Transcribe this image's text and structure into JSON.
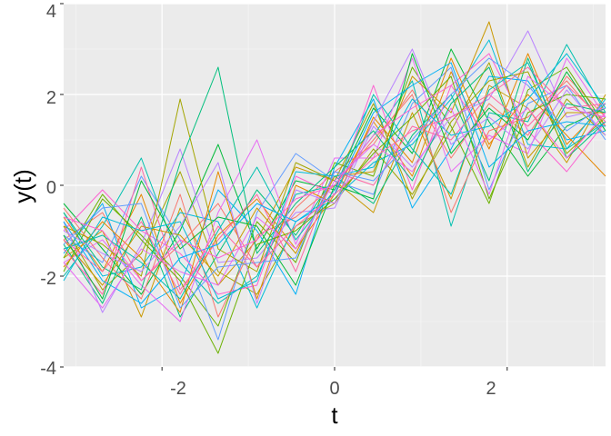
{
  "chart_data": {
    "type": "line",
    "title": "",
    "xlabel": "t",
    "ylabel": "y(t)",
    "xlim": [
      -3.14,
      3.14
    ],
    "ylim": [
      -4,
      4
    ],
    "x_ticks": [
      -2,
      0,
      2
    ],
    "x_tick_labels": [
      "-2",
      "0",
      "2"
    ],
    "y_ticks": [
      -4,
      -2,
      0,
      2,
      4
    ],
    "y_tick_labels": [
      "-4",
      "-2",
      "0",
      "2",
      "4"
    ],
    "grid": true,
    "legend": "none",
    "panel_background": "#EBEBEB",
    "series_colors": [
      "#F8766D",
      "#E58700",
      "#C99800",
      "#A3A500",
      "#6BB100",
      "#00BA38",
      "#00BF7D",
      "#00C0AF",
      "#00BCD8",
      "#00B0F6",
      "#619CFF",
      "#B983FF",
      "#E76BF3",
      "#FD61D1",
      "#FF67A4"
    ],
    "underlying_trend": {
      "x": [
        -3.14,
        -2.36,
        -1.57,
        -0.79,
        0,
        0.79,
        1.57,
        2.36,
        3.14
      ],
      "y": [
        -1.0,
        -1.3,
        -1.4,
        -0.9,
        0.0,
        0.9,
        1.4,
        1.3,
        1.0
      ]
    },
    "series": [
      {
        "x": [
          -3.14,
          -2.69,
          -2.24,
          -1.79,
          -1.35,
          -0.9,
          -0.45,
          0,
          0.45,
          0.9,
          1.35,
          1.79,
          2.24,
          2.69,
          3.14
        ],
        "y": [
          -1.2,
          -0.6,
          -2.1,
          -1.3,
          -0.4,
          -1.8,
          -0.5,
          0.3,
          0.9,
          2.1,
          0.6,
          1.8,
          1.1,
          2.4,
          1.5
        ]
      },
      {
        "x": [
          -3.14,
          -2.69,
          -2.24,
          -1.79,
          -1.35,
          -0.9,
          -0.45,
          0,
          0.45,
          0.9,
          1.35,
          1.79,
          2.24,
          2.69,
          3.14
        ],
        "y": [
          -0.7,
          -1.9,
          -0.2,
          -2.6,
          -1.1,
          -0.3,
          -1.4,
          -0.2,
          1.4,
          0.2,
          2.5,
          0.8,
          2.9,
          0.9,
          1.8
        ]
      },
      {
        "x": [
          -3.14,
          -2.69,
          -2.24,
          -1.79,
          -1.35,
          -0.9,
          -0.45,
          0,
          0.45,
          0.9,
          1.35,
          1.79,
          2.24,
          2.69,
          3.14
        ],
        "y": [
          -1.6,
          -1.0,
          -2.9,
          -0.5,
          -2.2,
          -1.2,
          0.4,
          0.1,
          -0.6,
          1.6,
          -0.3,
          2.2,
          1.7,
          0.5,
          2.0
        ]
      },
      {
        "x": [
          -3.14,
          -2.69,
          -2.24,
          -1.79,
          -1.35,
          -0.9,
          -0.45,
          0,
          0.45,
          0.9,
          1.35,
          1.79,
          2.24,
          2.69,
          3.14
        ],
        "y": [
          -0.9,
          -2.3,
          -1.5,
          0.3,
          -1.9,
          -2.4,
          -0.9,
          -0.4,
          0.8,
          -0.2,
          1.2,
          2.7,
          0.4,
          1.9,
          1.1
        ]
      },
      {
        "x": [
          -3.14,
          -2.69,
          -2.24,
          -1.79,
          -1.35,
          -0.9,
          -0.45,
          0,
          0.45,
          0.9,
          1.35,
          1.79,
          2.24,
          2.69,
          3.14
        ],
        "y": [
          -1.9,
          -0.3,
          -1.1,
          -2.0,
          -3.1,
          -0.8,
          -1.7,
          0.5,
          0.2,
          2.6,
          1.3,
          -0.4,
          2.1,
          2.6,
          1.3
        ]
      },
      {
        "x": [
          -3.14,
          -2.69,
          -2.24,
          -1.79,
          -1.35,
          -0.9,
          -0.45,
          0,
          0.45,
          0.9,
          1.35,
          1.79,
          2.24,
          2.69,
          3.14
        ],
        "y": [
          -0.4,
          -1.4,
          -2.4,
          -1.0,
          0.9,
          -1.4,
          0.1,
          -0.1,
          1.7,
          0.7,
          3.0,
          1.4,
          0.2,
          1.3,
          1.7
        ]
      },
      {
        "x": [
          -3.14,
          -2.69,
          -2.24,
          -1.79,
          -1.35,
          -0.9,
          -0.45,
          0,
          0.45,
          0.9,
          1.35,
          1.79,
          2.24,
          2.69,
          3.14
        ],
        "y": [
          -1.3,
          -2.6,
          -0.7,
          -2.9,
          -1.5,
          -0.1,
          -1.1,
          0.2,
          -0.4,
          1.1,
          2.0,
          0.1,
          2.8,
          0.6,
          1.4
        ]
      },
      {
        "x": [
          -3.14,
          -2.69,
          -2.24,
          -1.79,
          -1.35,
          -0.9,
          -0.45,
          0,
          0.45,
          0.9,
          1.35,
          1.79,
          2.24,
          2.69,
          3.14
        ],
        "y": [
          -2.0,
          -0.9,
          0.6,
          -1.7,
          -2.6,
          -2.0,
          -0.2,
          0.0,
          1.1,
          2.3,
          -0.9,
          1.6,
          1.4,
          3.1,
          1.6
        ]
      },
      {
        "x": [
          -3.14,
          -2.69,
          -2.24,
          -1.79,
          -1.35,
          -0.9,
          -0.45,
          0,
          0.45,
          0.9,
          1.35,
          1.79,
          2.24,
          2.69,
          3.14
        ],
        "y": [
          -0.6,
          -2.0,
          -1.8,
          -0.6,
          -0.8,
          -2.7,
          -0.8,
          -0.3,
          0.5,
          0.9,
          1.9,
          3.2,
          0.9,
          0.8,
          1.9
        ]
      },
      {
        "x": [
          -3.14,
          -2.69,
          -2.24,
          -1.79,
          -1.35,
          -0.9,
          -0.45,
          0,
          0.45,
          0.9,
          1.35,
          1.79,
          2.24,
          2.69,
          3.14
        ],
        "y": [
          -1.5,
          -0.4,
          -2.7,
          -2.2,
          -0.1,
          -1.0,
          -2.4,
          0.4,
          1.9,
          -0.5,
          0.8,
          2.4,
          2.3,
          1.0,
          1.2
        ]
      },
      {
        "x": [
          -3.14,
          -2.69,
          -2.24,
          -1.79,
          -1.35,
          -0.9,
          -0.45,
          0,
          0.45,
          0.9,
          1.35,
          1.79,
          2.24,
          2.69,
          3.14
        ],
        "y": [
          -1.1,
          -1.7,
          0.2,
          -1.2,
          -3.4,
          -0.6,
          0.7,
          0.1,
          -0.2,
          1.8,
          2.6,
          -0.1,
          1.8,
          2.2,
          1.0
        ]
      },
      {
        "x": [
          -3.14,
          -2.69,
          -2.24,
          -1.79,
          -1.35,
          -0.9,
          -0.45,
          0,
          0.45,
          0.9,
          1.35,
          1.79,
          2.24,
          2.69,
          3.14
        ],
        "y": [
          -0.8,
          -2.8,
          -1.3,
          0.8,
          -1.7,
          -1.6,
          -0.6,
          -0.5,
          1.3,
          0.4,
          1.5,
          1.9,
          3.4,
          1.5,
          1.7
        ]
      },
      {
        "x": [
          -3.14,
          -2.69,
          -2.24,
          -1.79,
          -1.35,
          -0.9,
          -0.45,
          0,
          0.45,
          0.9,
          1.35,
          1.79,
          2.24,
          2.69,
          3.14
        ],
        "y": [
          -1.7,
          -1.2,
          -2.2,
          -3.0,
          -0.6,
          1.0,
          -1.3,
          0.6,
          0.6,
          2.8,
          0.3,
          1.1,
          0.7,
          2.8,
          1.5
        ]
      },
      {
        "x": [
          -3.14,
          -2.69,
          -2.24,
          -1.79,
          -1.35,
          -0.9,
          -0.45,
          0,
          0.45,
          0.9,
          1.35,
          1.79,
          2.24,
          2.69,
          3.14
        ],
        "y": [
          -1.0,
          -0.1,
          -1.0,
          -1.5,
          -2.4,
          -2.2,
          0.2,
          -0.2,
          2.2,
          -0.1,
          2.2,
          2.9,
          1.2,
          0.3,
          1.4
        ]
      },
      {
        "x": [
          -3.14,
          -2.69,
          -2.24,
          -1.79,
          -1.35,
          -0.9,
          -0.45,
          0,
          0.45,
          0.9,
          1.35,
          1.79,
          2.24,
          2.69,
          3.14
        ],
        "y": [
          -1.4,
          -2.4,
          0.4,
          -2.3,
          -1.2,
          -0.2,
          -1.9,
          0.3,
          0.0,
          1.3,
          1.0,
          2.0,
          2.6,
          1.7,
          1.8
        ]
      },
      {
        "x": [
          -3.14,
          -2.69,
          -2.24,
          -1.79,
          -1.35,
          -0.9,
          -0.45,
          0,
          0.45,
          0.9,
          1.35,
          1.79,
          2.24,
          2.69,
          3.14
        ],
        "y": [
          -0.5,
          -1.6,
          -2.5,
          -0.2,
          -2.9,
          -1.1,
          -0.7,
          0.0,
          1.0,
          2.0,
          -0.6,
          1.2,
          1.5,
          2.3,
          1.3
        ]
      },
      {
        "x": [
          -3.14,
          -2.69,
          -2.24,
          -1.79,
          -1.35,
          -0.9,
          -0.45,
          0,
          0.45,
          0.9,
          1.35,
          1.79,
          2.24,
          2.69,
          3.14
        ],
        "y": [
          -1.8,
          -0.8,
          -1.6,
          -2.8,
          0.3,
          -2.5,
          0.0,
          -0.4,
          1.5,
          0.5,
          2.8,
          0.9,
          2.0,
          1.1,
          0.2
        ]
      },
      {
        "x": [
          -3.14,
          -2.69,
          -2.24,
          -1.79,
          -1.35,
          -0.9,
          -0.45,
          0,
          0.45,
          0.9,
          1.35,
          1.79,
          2.24,
          2.69,
          3.14
        ],
        "y": [
          -1.2,
          -2.2,
          -0.9,
          -1.1,
          -2.0,
          -0.5,
          -1.5,
          0.2,
          0.3,
          2.4,
          1.6,
          3.6,
          0.6,
          1.6,
          1.6
        ]
      },
      {
        "x": [
          -3.14,
          -2.69,
          -2.24,
          -1.79,
          -1.35,
          -0.9,
          -0.45,
          0,
          0.45,
          0.9,
          1.35,
          1.79,
          2.24,
          2.69,
          3.14
        ],
        "y": [
          -0.9,
          -1.3,
          -2.0,
          1.9,
          -1.4,
          -1.9,
          0.5,
          0.1,
          1.8,
          -0.3,
          1.4,
          2.3,
          2.5,
          0.7,
          1.5
        ]
      },
      {
        "x": [
          -3.14,
          -2.69,
          -2.24,
          -1.79,
          -1.35,
          -0.9,
          -0.45,
          0,
          0.45,
          0.9,
          1.35,
          1.79,
          2.24,
          2.69,
          3.14
        ],
        "y": [
          -1.6,
          -0.2,
          -1.2,
          -2.1,
          -3.7,
          -1.3,
          -1.0,
          -0.3,
          0.7,
          1.5,
          2.4,
          -0.3,
          1.6,
          2.0,
          1.9
        ]
      },
      {
        "x": [
          -3.14,
          -2.69,
          -2.24,
          -1.79,
          -1.35,
          -0.9,
          -0.45,
          0,
          0.45,
          0.9,
          1.35,
          1.79,
          2.24,
          2.69,
          3.14
        ],
        "y": [
          -1.1,
          -2.5,
          0.1,
          -1.4,
          -0.7,
          -0.9,
          -2.2,
          0.0,
          -0.3,
          2.9,
          0.7,
          1.7,
          1.0,
          2.5,
          1.2
        ]
      },
      {
        "x": [
          -3.14,
          -2.69,
          -2.24,
          -1.79,
          -1.35,
          -0.9,
          -0.45,
          0,
          0.45,
          0.9,
          1.35,
          1.79,
          2.24,
          2.69,
          3.14
        ],
        "y": [
          -0.6,
          -1.8,
          -2.3,
          0.5,
          2.6,
          -1.5,
          -0.4,
          0.4,
          1.2,
          0.1,
          1.8,
          2.6,
          0.3,
          1.8,
          1.6
        ]
      },
      {
        "x": [
          -3.14,
          -2.69,
          -2.24,
          -1.79,
          -1.35,
          -0.9,
          -0.45,
          0,
          0.45,
          0.9,
          1.35,
          1.79,
          2.24,
          2.69,
          3.14
        ],
        "y": [
          -1.4,
          -1.1,
          -1.7,
          -2.5,
          -1.0,
          0.4,
          -1.2,
          -0.1,
          2.0,
          0.8,
          -0.2,
          2.1,
          2.7,
          0.8,
          1.4
        ]
      },
      {
        "x": [
          -3.14,
          -2.69,
          -2.24,
          -1.79,
          -1.35,
          -0.9,
          -0.45,
          0,
          0.45,
          0.9,
          1.35,
          1.79,
          2.24,
          2.69,
          3.14
        ],
        "y": [
          -2.1,
          -0.7,
          -1.0,
          -0.8,
          -2.5,
          -2.1,
          0.3,
          0.2,
          0.4,
          1.9,
          1.1,
          1.3,
          1.9,
          2.9,
          1.7
        ]
      },
      {
        "x": [
          -3.14,
          -2.69,
          -2.24,
          -1.79,
          -1.35,
          -0.9,
          -0.45,
          0,
          0.45,
          0.9,
          1.35,
          1.79,
          2.24,
          2.69,
          3.14
        ],
        "y": [
          -0.8,
          -2.1,
          -2.6,
          -1.6,
          -1.3,
          -0.4,
          -0.8,
          -0.2,
          1.6,
          2.2,
          2.7,
          0.4,
          1.2,
          1.4,
          1.3
        ]
      },
      {
        "x": [
          -3.14,
          -2.69,
          -2.24,
          -1.79,
          -1.35,
          -0.9,
          -0.45,
          0,
          0.45,
          0.9,
          1.35,
          1.79,
          2.24,
          2.69,
          3.14
        ],
        "y": [
          -1.3,
          -0.5,
          -0.4,
          -2.7,
          -1.8,
          -1.7,
          -1.6,
          0.3,
          0.1,
          1.0,
          2.0,
          2.8,
          2.2,
          1.2,
          1.8
        ]
      },
      {
        "x": [
          -3.14,
          -2.69,
          -2.24,
          -1.79,
          -1.35,
          -0.9,
          -0.45,
          0,
          0.45,
          0.9,
          1.35,
          1.79,
          2.24,
          2.69,
          3.14
        ],
        "y": [
          -1.0,
          -1.5,
          -1.9,
          -0.9,
          0.5,
          -2.6,
          -0.1,
          -0.4,
          1.4,
          3.0,
          0.9,
          1.5,
          0.8,
          2.1,
          1.1
        ]
      },
      {
        "x": [
          -3.14,
          -2.69,
          -2.24,
          -1.79,
          -1.35,
          -0.9,
          -0.45,
          0,
          0.45,
          0.9,
          1.35,
          1.79,
          2.24,
          2.69,
          3.14
        ],
        "y": [
          -1.7,
          -2.7,
          -1.4,
          -1.9,
          -2.2,
          -0.7,
          -1.4,
          0.1,
          0.9,
          0.3,
          1.7,
          -0.2,
          2.4,
          1.7,
          1.5
        ]
      },
      {
        "x": [
          -3.14,
          -2.69,
          -2.24,
          -1.79,
          -1.35,
          -0.9,
          -0.45,
          0,
          0.45,
          0.9,
          1.35,
          1.79,
          2.24,
          2.69,
          3.14
        ],
        "y": [
          -0.7,
          -1.0,
          -2.1,
          -1.2,
          -1.6,
          -1.2,
          -0.3,
          0.0,
          1.1,
          1.7,
          2.2,
          1.0,
          1.7,
          0.6,
          1.6
        ]
      },
      {
        "x": [
          -3.14,
          -2.69,
          -2.24,
          -1.79,
          -1.35,
          -0.9,
          -0.45,
          0,
          0.45,
          0.9,
          1.35,
          1.79,
          2.24,
          2.69,
          3.14
        ],
        "y": [
          -1.2,
          -1.9,
          -0.8,
          -2.4,
          -0.9,
          -1.8,
          -0.9,
          -0.2,
          0.6,
          1.2,
          1.5,
          2.0,
          1.3,
          2.2,
          1.4
        ]
      }
    ]
  }
}
